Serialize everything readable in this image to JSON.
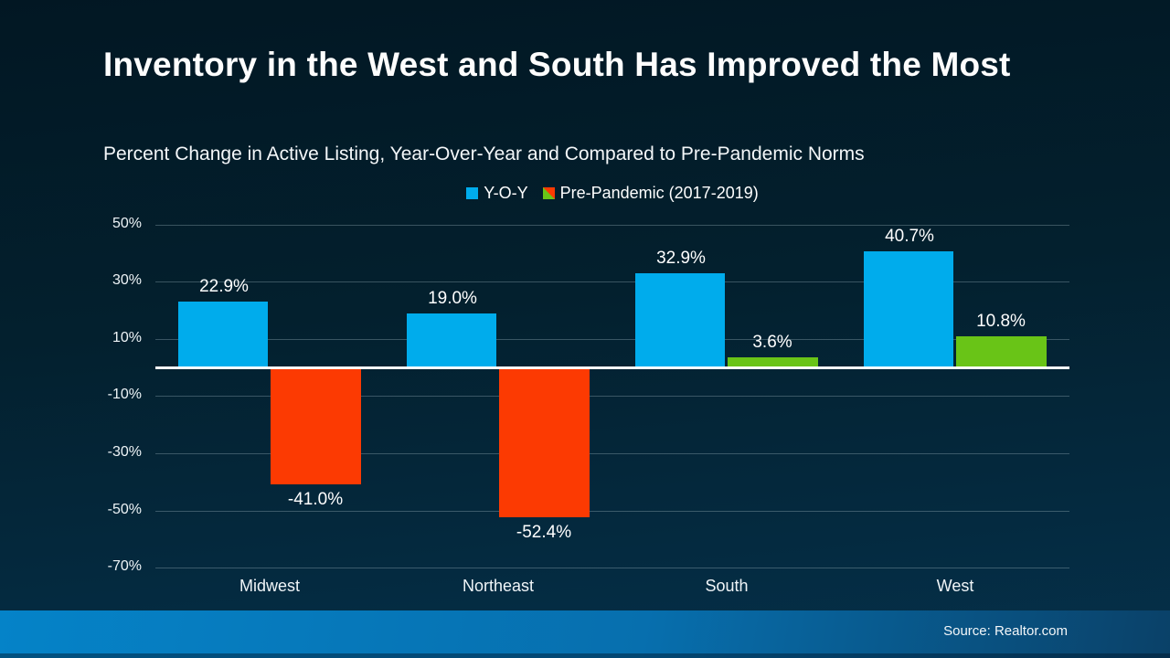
{
  "slide": {
    "title": "Inventory in the West and South Has Improved the Most",
    "subtitle": "Percent Change in Active Listing, Year-Over-Year and Compared to Pre-Pandemic Norms",
    "source": "Source: Realtor.com"
  },
  "colors": {
    "background_top": "#021723",
    "background_bottom": "#05304a",
    "yoy_blue": "#00acec",
    "prepandemic_green": "#69c417",
    "prepandemic_red": "#fc3a02",
    "band_left": "#0583c8",
    "band_right": "#0a4168",
    "zero_axis": "#ffffff"
  },
  "chart_data": {
    "type": "bar",
    "title": "Inventory in the West and South Has Improved the Most",
    "subtitle": "Percent Change in Active Listing, Year-Over-Year and Compared to Pre-Pandemic Norms",
    "categories": [
      "Midwest",
      "Northeast",
      "South",
      "West"
    ],
    "series": [
      {
        "name": "Y-O-Y",
        "values": [
          22.9,
          19.0,
          32.9,
          40.7
        ],
        "color": "#00acec"
      },
      {
        "name": "Pre-Pandemic (2017-2019)",
        "values": [
          -41.0,
          -52.4,
          3.6,
          10.8
        ],
        "color_positive": "#69c417",
        "color_negative": "#fc3a02"
      }
    ],
    "y_ticks": [
      {
        "value": 50,
        "label": "50%"
      },
      {
        "value": 30,
        "label": "30%"
      },
      {
        "value": 10,
        "label": "10%"
      },
      {
        "value": -10,
        "label": "-10%"
      },
      {
        "value": -30,
        "label": "-30%"
      },
      {
        "value": -50,
        "label": "-50%"
      },
      {
        "value": -70,
        "label": "-70%"
      }
    ],
    "ylim": [
      -70,
      50
    ],
    "value_suffix": "%",
    "value_decimals": 1,
    "grid": true,
    "legend_position": "top-center"
  }
}
